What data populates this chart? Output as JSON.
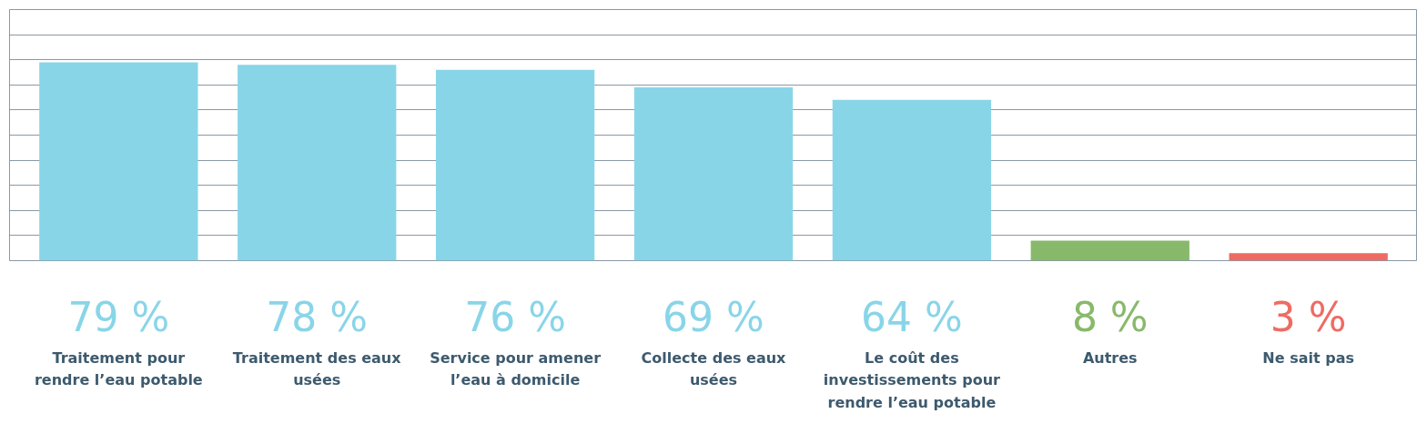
{
  "chart_data": {
    "type": "bar",
    "categories": [
      "Traitement pour rendre l’eau potable",
      "Traitement des eaux usées",
      "Service pour amener l’eau à domicile",
      "Collecte des eaux usées",
      "Le coût des investissements pour rendre l’eau potable",
      "Autres",
      "Ne sait pas"
    ],
    "values": [
      79,
      78,
      76,
      69,
      64,
      8,
      3
    ],
    "colors": [
      "#89d5e8",
      "#89d5e8",
      "#89d5e8",
      "#89d5e8",
      "#89d5e8",
      "#88b96b",
      "#ee6b63"
    ],
    "value_labels": [
      "79 %",
      "78 %",
      "76 %",
      "69 %",
      "64 %",
      "8 %",
      "3 %"
    ],
    "ylim": [
      0,
      100
    ],
    "grid": "y",
    "tick_labels": "x"
  }
}
